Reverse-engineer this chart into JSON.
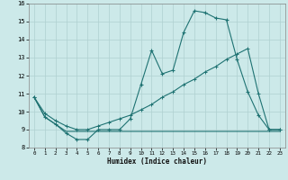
{
  "xlabel": "Humidex (Indice chaleur)",
  "background_color": "#cce9e9",
  "grid_color": "#afd0d0",
  "line_color": "#1e7272",
  "xlim": [
    -0.5,
    23.5
  ],
  "ylim": [
    8,
    16
  ],
  "xticks": [
    0,
    1,
    2,
    3,
    4,
    5,
    6,
    7,
    8,
    9,
    10,
    11,
    12,
    13,
    14,
    15,
    16,
    17,
    18,
    19,
    20,
    21,
    22,
    23
  ],
  "yticks": [
    8,
    9,
    10,
    11,
    12,
    13,
    14,
    15,
    16
  ],
  "line1_x": [
    0,
    1,
    2,
    3,
    4,
    5,
    6,
    7,
    8,
    9,
    10,
    11,
    12,
    13,
    14,
    15,
    16,
    17,
    18,
    19,
    20,
    21,
    22,
    23
  ],
  "line1_y": [
    10.8,
    9.7,
    9.3,
    8.8,
    8.45,
    8.45,
    9.0,
    9.0,
    9.0,
    9.6,
    11.5,
    13.4,
    12.1,
    12.3,
    14.4,
    15.6,
    15.5,
    15.2,
    15.1,
    12.9,
    11.1,
    9.8,
    9.0,
    9.0
  ],
  "line2_x": [
    0,
    1,
    2,
    3,
    4,
    5,
    6,
    7,
    8,
    9,
    10,
    11,
    12,
    13,
    14,
    15,
    16,
    17,
    18,
    19,
    20,
    21,
    22,
    23
  ],
  "line2_y": [
    10.8,
    9.9,
    9.5,
    9.2,
    9.0,
    9.0,
    9.2,
    9.4,
    9.6,
    9.8,
    10.1,
    10.4,
    10.8,
    11.1,
    11.5,
    11.8,
    12.2,
    12.5,
    12.9,
    13.2,
    13.5,
    11.0,
    9.0,
    9.0
  ],
  "line3_x": [
    0,
    1,
    2,
    3,
    4,
    5,
    6,
    7,
    8,
    9,
    10,
    11,
    12,
    13,
    14,
    15,
    16,
    17,
    18,
    19,
    20,
    21,
    22,
    23
  ],
  "line3_y": [
    10.8,
    9.7,
    9.3,
    8.9,
    8.9,
    8.9,
    8.9,
    8.9,
    8.9,
    8.9,
    8.9,
    8.9,
    8.9,
    8.9,
    8.9,
    8.9,
    8.9,
    8.9,
    8.9,
    8.9,
    8.9,
    8.9,
    8.9,
    8.9
  ]
}
